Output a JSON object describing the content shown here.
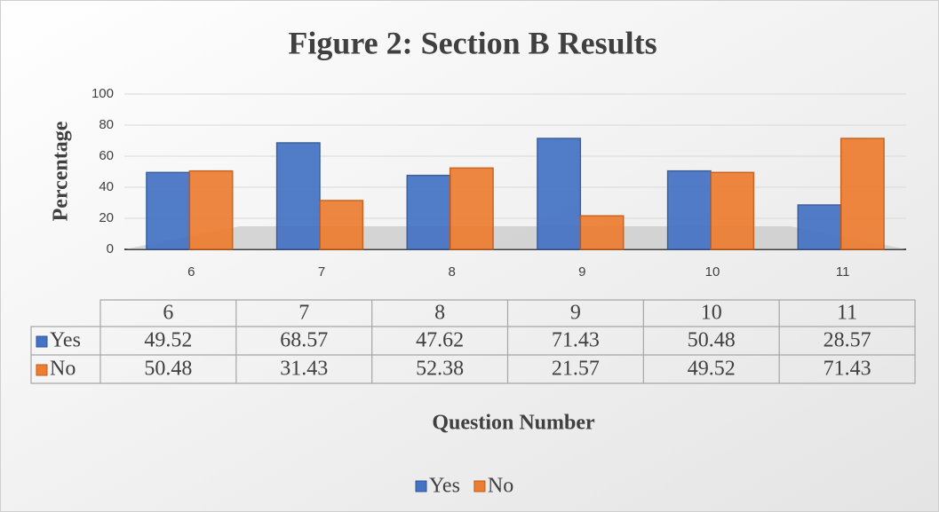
{
  "chart_data": {
    "type": "bar",
    "title": "Figure 2: Section B Results",
    "y_label": "Percentage",
    "x_label": "Question Number",
    "categories": [
      "6",
      "7",
      "8",
      "9",
      "10",
      "11"
    ],
    "series": [
      {
        "name": "Yes",
        "color": "#4472c4",
        "values": [
          49.52,
          68.57,
          47.62,
          71.43,
          50.48,
          28.57
        ]
      },
      {
        "name": "No",
        "color": "#ed7d31",
        "values": [
          50.48,
          31.43,
          52.38,
          21.57,
          49.52,
          71.43
        ]
      }
    ],
    "ylim": [
      0,
      100
    ],
    "yticks": [
      0,
      20,
      40,
      60,
      80,
      100
    ],
    "grid": true,
    "legend": "bottom",
    "data_table": true
  }
}
